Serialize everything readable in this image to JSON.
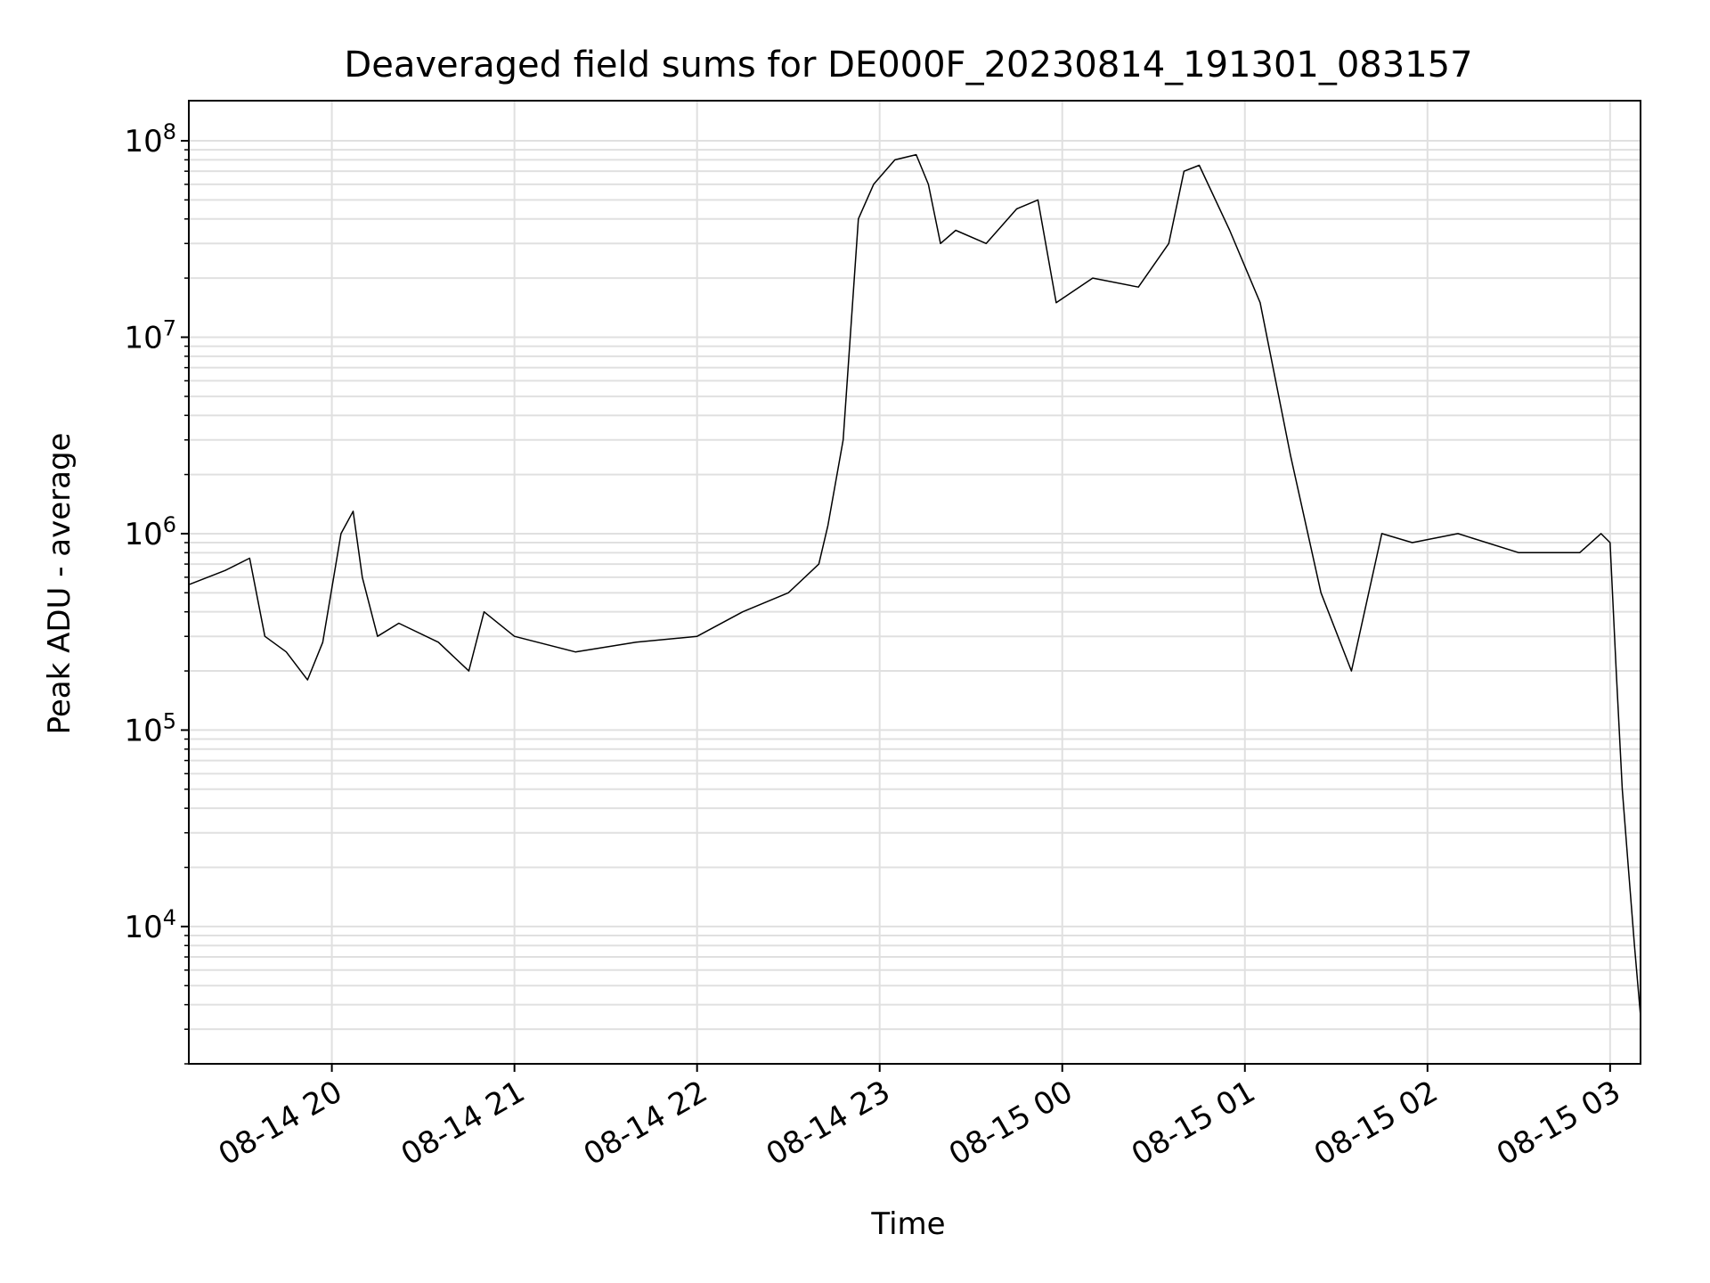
{
  "chart_data": {
    "type": "line",
    "title": "Deaveraged field sums for DE000F_20230814_191301_083157",
    "xlabel": "Time",
    "ylabel": "Peak ADU - average",
    "yscale": "log",
    "ylim": [
      2000,
      160000000
    ],
    "xlim": [
      "2023-08-14 19:13",
      "2023-08-15 03:10"
    ],
    "grid": true,
    "x_ticks": [
      "08-14 20",
      "08-14 21",
      "08-14 22",
      "08-14 23",
      "08-15 00",
      "08-15 01",
      "08-15 02",
      "08-15 03"
    ],
    "x_tick_times": [
      "2023-08-14 20:00",
      "2023-08-14 21:00",
      "2023-08-14 22:00",
      "2023-08-14 23:00",
      "2023-08-15 00:00",
      "2023-08-15 01:00",
      "2023-08-15 02:00",
      "2023-08-15 03:00"
    ],
    "y_ticks": [
      {
        "value": 10000,
        "base": "10",
        "exp": "4"
      },
      {
        "value": 100000,
        "base": "10",
        "exp": "5"
      },
      {
        "value": 1000000,
        "base": "10",
        "exp": "6"
      },
      {
        "value": 10000000,
        "base": "10",
        "exp": "7"
      },
      {
        "value": 100000000,
        "base": "10",
        "exp": "8"
      }
    ],
    "line_color": "#000000",
    "grid_color": "#e0e0e0",
    "series": [
      {
        "x": [
          "2023-08-14 19:13",
          "2023-08-14 19:25",
          "2023-08-14 19:33",
          "2023-08-14 19:38",
          "2023-08-14 19:45",
          "2023-08-14 19:52",
          "2023-08-14 19:57",
          "2023-08-14 20:03",
          "2023-08-14 20:07",
          "2023-08-14 20:10",
          "2023-08-14 20:15",
          "2023-08-14 20:22",
          "2023-08-14 20:35",
          "2023-08-14 20:45",
          "2023-08-14 20:50",
          "2023-08-14 21:00",
          "2023-08-14 21:20",
          "2023-08-14 21:40",
          "2023-08-14 22:00",
          "2023-08-14 22:15",
          "2023-08-14 22:30",
          "2023-08-14 22:40",
          "2023-08-14 22:43",
          "2023-08-14 22:48",
          "2023-08-14 22:53",
          "2023-08-14 22:58",
          "2023-08-14 23:05",
          "2023-08-14 23:12",
          "2023-08-14 23:16",
          "2023-08-14 23:20",
          "2023-08-14 23:25",
          "2023-08-14 23:35",
          "2023-08-14 23:45",
          "2023-08-14 23:52",
          "2023-08-14 23:58",
          "2023-08-15 00:10",
          "2023-08-15 00:25",
          "2023-08-15 00:35",
          "2023-08-15 00:40",
          "2023-08-15 00:45",
          "2023-08-15 00:55",
          "2023-08-15 01:05",
          "2023-08-15 01:15",
          "2023-08-15 01:25",
          "2023-08-15 01:35",
          "2023-08-15 01:45",
          "2023-08-15 01:55",
          "2023-08-15 02:10",
          "2023-08-15 02:30",
          "2023-08-15 02:50",
          "2023-08-15 02:57",
          "2023-08-15 03:00",
          "2023-08-15 03:02",
          "2023-08-15 03:04",
          "2023-08-15 03:06",
          "2023-08-15 03:08",
          "2023-08-15 03:10"
        ],
        "y": [
          550000,
          650000,
          750000,
          300000,
          250000,
          180000,
          280000,
          1000000,
          1300000,
          600000,
          300000,
          350000,
          280000,
          200000,
          400000,
          300000,
          250000,
          280000,
          300000,
          400000,
          500000,
          700000,
          1100000,
          3000000,
          40000000,
          60000000,
          80000000,
          85000000,
          60000000,
          30000000,
          35000000,
          30000000,
          45000000,
          50000000,
          15000000,
          20000000,
          18000000,
          30000000,
          70000000,
          75000000,
          35000000,
          15000000,
          2500000,
          500000,
          200000,
          1000000,
          900000,
          1000000,
          800000,
          800000,
          1000000,
          900000,
          200000,
          50000,
          20000,
          8000,
          3500
        ]
      }
    ]
  }
}
